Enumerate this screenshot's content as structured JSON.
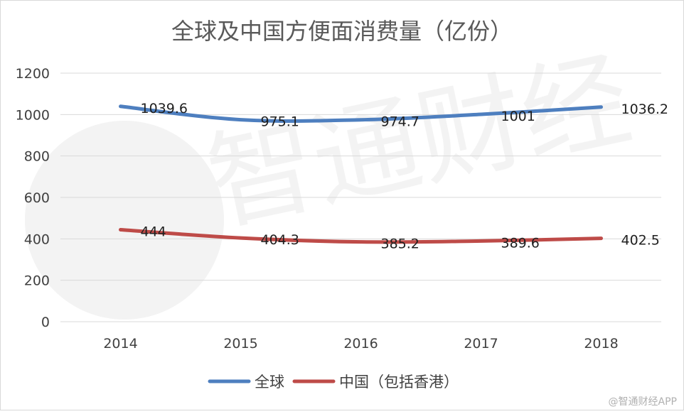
{
  "chart_data": {
    "type": "line",
    "title": "全球及中国方便面消费量（亿份）",
    "categories": [
      "2014",
      "2015",
      "2016",
      "2017",
      "2018"
    ],
    "series": [
      {
        "name": "全球",
        "values": [
          1039.6,
          975.1,
          974.7,
          1001,
          1036.2
        ],
        "color": "#4E7FBF",
        "labels": [
          "1039.6",
          "975.1",
          "974.7",
          "1001",
          "1036.2"
        ]
      },
      {
        "name": "中国（包括香港）",
        "values": [
          444,
          404.3,
          385.2,
          389.6,
          402.5
        ],
        "color": "#BE4B48",
        "labels": [
          "444",
          "404.3",
          "385.2",
          "389.6",
          "402.5"
        ]
      }
    ],
    "ylim": [
      0,
      1200
    ],
    "yticks": [
      "0",
      "200",
      "400",
      "600",
      "800",
      "1000",
      "1200"
    ],
    "grid": true,
    "legend_position": "bottom"
  },
  "watermark": {
    "text": "@智通财经APP",
    "logo_text": "智通财经"
  }
}
